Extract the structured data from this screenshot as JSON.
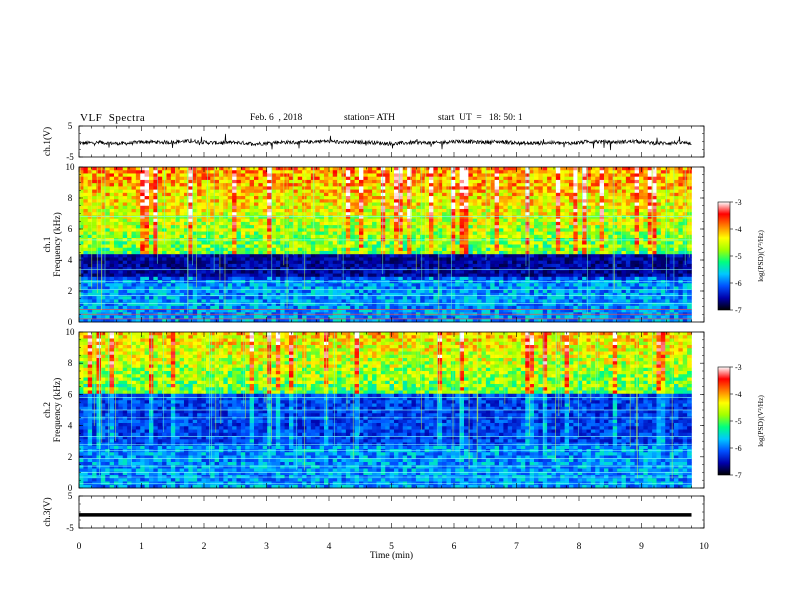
{
  "header": {
    "title": "VLF  Spectra",
    "date": "Feb. 6  , 2018",
    "station": "station= ATH",
    "start": "start  UT  =   18: 50: 1"
  },
  "chart_data": [
    {
      "type": "line",
      "panel": "ch1-waveform",
      "ylabel": "ch.1(V)",
      "ylim": [
        -5,
        5
      ],
      "yticks": [
        "5",
        "-5"
      ],
      "x_range_min": [
        0,
        9.8
      ],
      "baseline_v": -0.3
    },
    {
      "type": "heatmap",
      "panel": "ch1-spectrogram",
      "ylabel": "ch.1\nFrequency  (kHz)",
      "ylabel_lines": [
        "ch.1",
        "Frequency  (kHz)"
      ],
      "ylim": [
        0,
        10
      ],
      "yticks": [
        "0",
        "2",
        "4",
        "6",
        "8",
        "10"
      ],
      "colorbar": {
        "label": "log(PSD)(V²/Hz)",
        "range": [
          -7,
          -3
        ],
        "ticks": [
          "-3",
          "-4",
          "-5",
          "-6",
          "-7"
        ]
      }
    },
    {
      "type": "heatmap",
      "panel": "ch2-spectrogram",
      "ylabel_lines": [
        "ch.2",
        "Frequency  (kHz)"
      ],
      "ylim": [
        0,
        10
      ],
      "yticks": [
        "0",
        "2",
        "4",
        "6",
        "8",
        "10"
      ],
      "colorbar": {
        "label": "log(PSD)(V²/Hz)",
        "range": [
          -7,
          -3
        ],
        "ticks": [
          "-3",
          "-4",
          "-5",
          "-6",
          "-7"
        ]
      }
    },
    {
      "type": "line",
      "panel": "ch3-waveform",
      "ylabel": "ch.3(V)",
      "ylim": [
        -5,
        5
      ],
      "yticks": [
        "5",
        "-5"
      ],
      "constant_v": -0.9
    }
  ],
  "xaxis": {
    "label": "Time  (min)",
    "range": [
      0,
      10
    ],
    "ticks": [
      "0",
      "1",
      "2",
      "3",
      "4",
      "5",
      "6",
      "7",
      "8",
      "9",
      "10"
    ]
  },
  "colors": {
    "scale": [
      "#000000",
      "#0000aa",
      "#0050ff",
      "#00c8ff",
      "#00ff80",
      "#a0ff00",
      "#ffff00",
      "#ff8000",
      "#ff0000",
      "#ffffff"
    ]
  }
}
